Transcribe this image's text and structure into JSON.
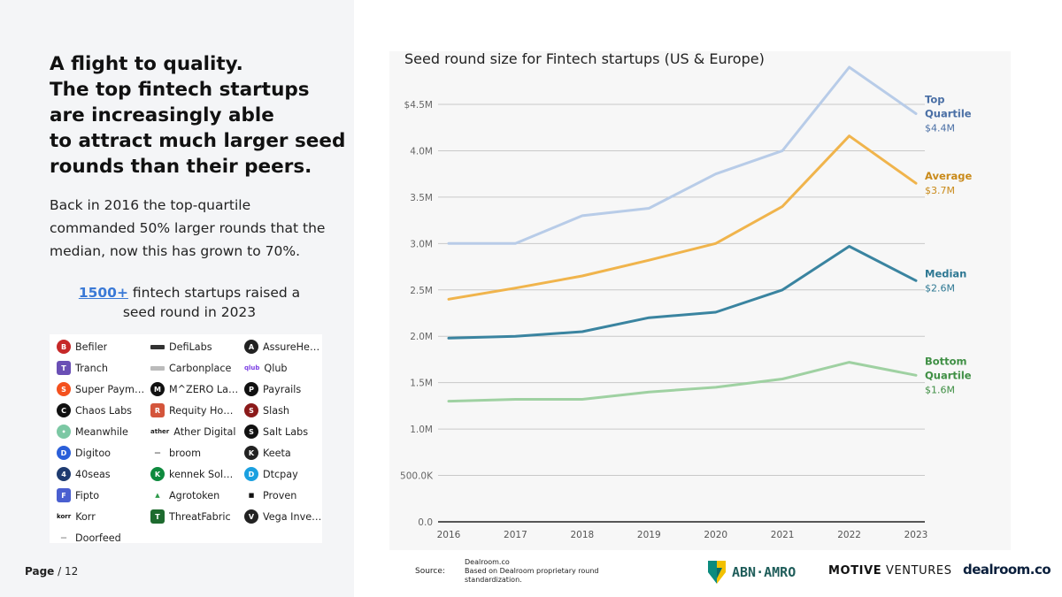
{
  "headline": [
    "A flight to quality.",
    "The top fintech startups",
    "are increasingly able",
    "to attract much larger seed",
    "rounds than their peers."
  ],
  "body_lines": [
    "Back in 2016 the top-quartile",
    "commanded 50% larger rounds that the",
    "median, now this has grown to 70%."
  ],
  "raised": {
    "count": "1500+",
    "text1": "fintech startups raised a",
    "text2": "seed round in 2023"
  },
  "logos": [
    {
      "name": "Befiler",
      "color": "#c62828",
      "shape": "circle",
      "glyph": "B"
    },
    {
      "name": "DefiLabs",
      "color": "#333333",
      "shape": "bar",
      "glyph": ""
    },
    {
      "name": "AssureHedge",
      "color": "#222222",
      "shape": "circle",
      "glyph": "A"
    },
    {
      "name": "Tranch",
      "color": "#6a4fb5",
      "shape": "sq",
      "glyph": "T"
    },
    {
      "name": "Carbonplace",
      "color": "#bbbbbb",
      "shape": "bar",
      "glyph": ""
    },
    {
      "name": "Qlub",
      "color": "#7b3fe4",
      "shape": "txt",
      "glyph": "qlub"
    },
    {
      "name": "Super Payments",
      "color": "#f4511e",
      "shape": "circle",
      "glyph": "S"
    },
    {
      "name": "M^ZERO Labs",
      "color": "#111111",
      "shape": "circle",
      "glyph": "M"
    },
    {
      "name": "Payrails",
      "color": "#111111",
      "shape": "circle",
      "glyph": "P"
    },
    {
      "name": "Chaos Labs",
      "color": "#111111",
      "shape": "circle",
      "glyph": "C"
    },
    {
      "name": "Requity Homes",
      "color": "#d4553b",
      "shape": "sq",
      "glyph": "R"
    },
    {
      "name": "Slash",
      "color": "#8b1a1a",
      "shape": "circle",
      "glyph": "S"
    },
    {
      "name": "Meanwhile",
      "color": "#7cc8a4",
      "shape": "circle",
      "glyph": "•"
    },
    {
      "name": "Ather Digital",
      "color": "#222222",
      "shape": "txt",
      "glyph": "ather"
    },
    {
      "name": "Salt Labs",
      "color": "#111111",
      "shape": "circle",
      "glyph": "S"
    },
    {
      "name": "Digitoo",
      "color": "#2b5fd9",
      "shape": "circle",
      "glyph": "D"
    },
    {
      "name": "broom",
      "color": "#444444",
      "shape": "txt",
      "glyph": "—"
    },
    {
      "name": "Keeta",
      "color": "#222222",
      "shape": "circle",
      "glyph": "K"
    },
    {
      "name": "40seas",
      "color": "#1f3b70",
      "shape": "circle",
      "glyph": "4"
    },
    {
      "name": "kennek Soluti…",
      "color": "#0e8a3e",
      "shape": "circle",
      "glyph": "K"
    },
    {
      "name": "Dtcpay",
      "color": "#1aa0e0",
      "shape": "circle",
      "glyph": "D"
    },
    {
      "name": "Fipto",
      "color": "#4a5fd0",
      "shape": "sq",
      "glyph": "F"
    },
    {
      "name": "Agrotoken",
      "color": "#2e9a4a",
      "shape": "txt",
      "glyph": "▲"
    },
    {
      "name": "Proven",
      "color": "#111111",
      "shape": "txt",
      "glyph": "■"
    },
    {
      "name": "Korr",
      "color": "#111111",
      "shape": "txt",
      "glyph": "korr"
    },
    {
      "name": "ThreatFabric",
      "color": "#1e6b2f",
      "shape": "sq",
      "glyph": "T"
    },
    {
      "name": "Vega Invest…",
      "color": "#222222",
      "shape": "circle",
      "glyph": "V"
    },
    {
      "name": "Doorfeed",
      "color": "#777777",
      "shape": "txt",
      "glyph": "—"
    }
  ],
  "page": {
    "label": "Page",
    "total": "/ 12"
  },
  "footer": {
    "source_label": "Source:",
    "note": "Dealroom.co\nBased on Dealroom proprietary round standardization.",
    "abn_amro": "ABN·AMRO",
    "motive_bold": "MOTIVE",
    "motive_rest": " VENTURES",
    "dealroom": "dealroom.co"
  },
  "colors": {
    "top": "#b8cce8",
    "average": "#f0b44c",
    "median": "#3a84a0",
    "bottom": "#9fd1a2",
    "top_label": "#4a6fa5",
    "avg_label": "#c98a1a",
    "median_label": "#2e7893",
    "bottom_label": "#3f8f44"
  },
  "chart_data": {
    "type": "line",
    "title": "Seed round size for Fintech startups (US & Europe)",
    "x": [
      2016,
      2017,
      2018,
      2019,
      2020,
      2021,
      2022,
      2023
    ],
    "ylim": [
      0,
      5000000
    ],
    "yticks": [
      0,
      500000,
      1000000,
      1500000,
      2000000,
      2500000,
      3000000,
      3500000,
      4000000,
      4500000
    ],
    "ytick_labels": [
      "0.0",
      "500.0K",
      "1.0M",
      "1.5M",
      "2.0M",
      "2.5M",
      "3.0M",
      "3.5M",
      "4.0M",
      "$4.5M"
    ],
    "grid": true,
    "series": [
      {
        "key": "top",
        "label_lines": [
          "Top",
          "Quartile"
        ],
        "end_value": "$4.4M",
        "values": [
          3000000,
          3000000,
          3300000,
          3380000,
          3750000,
          4000000,
          4900000,
          4400000
        ]
      },
      {
        "key": "average",
        "label_lines": [
          "Average"
        ],
        "end_value": "$3.7M",
        "values": [
          2400000,
          2520000,
          2650000,
          2820000,
          3000000,
          3400000,
          4160000,
          3650000
        ]
      },
      {
        "key": "median",
        "label_lines": [
          "Median"
        ],
        "end_value": "$2.6M",
        "values": [
          1980000,
          2000000,
          2050000,
          2200000,
          2260000,
          2500000,
          2970000,
          2600000
        ]
      },
      {
        "key": "bottom",
        "label_lines": [
          "Bottom",
          "Quartile"
        ],
        "end_value": "$1.6M",
        "values": [
          1300000,
          1320000,
          1320000,
          1400000,
          1450000,
          1540000,
          1720000,
          1580000
        ]
      }
    ]
  }
}
